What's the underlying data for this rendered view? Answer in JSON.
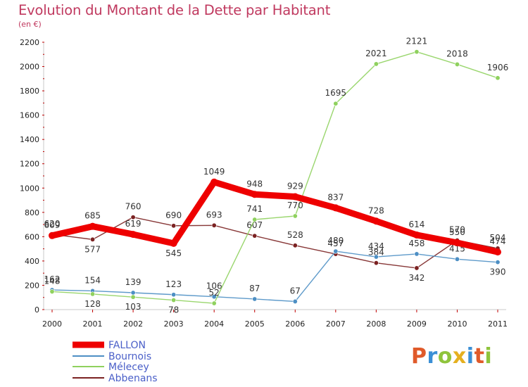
{
  "title": "Evolution du Montant de la Dette par Habitant",
  "subtitle": "(en €)",
  "logo": {
    "text": "Proxiti"
  },
  "chart_data": {
    "type": "line",
    "x": [
      "2000",
      "2001",
      "2002",
      "2003",
      "2004",
      "2005",
      "2006",
      "2007",
      "2008",
      "2009",
      "2010",
      "2011"
    ],
    "ylim": [
      0,
      2200
    ],
    "yticks": [
      "0",
      "200",
      "400",
      "600",
      "800",
      "1000",
      "1200",
      "1400",
      "1600",
      "1800",
      "2000",
      "2200"
    ],
    "grid": false,
    "legend_position": "bottom-left",
    "series": [
      {
        "name": "FALLON",
        "color": "#ee0000",
        "values": [
          609,
          685,
          619,
          545,
          1049,
          948,
          929,
          837,
          728,
          614,
          550,
          474
        ]
      },
      {
        "name": "Bournois",
        "color": "#4d8fc4",
        "values": [
          162,
          154,
          139,
          123,
          106,
          87,
          67,
          480,
          434,
          458,
          415,
          390
        ]
      },
      {
        "name": "Mélecey",
        "color": "#8fd15e",
        "values": [
          148,
          128,
          103,
          78,
          52,
          741,
          770,
          1695,
          2021,
          2121,
          2018,
          1906
        ]
      },
      {
        "name": "Abbenans",
        "color": "#7b2222",
        "values": [
          620,
          577,
          760,
          690,
          693,
          607,
          528,
          457,
          384,
          342,
          570,
          504
        ]
      }
    ]
  }
}
